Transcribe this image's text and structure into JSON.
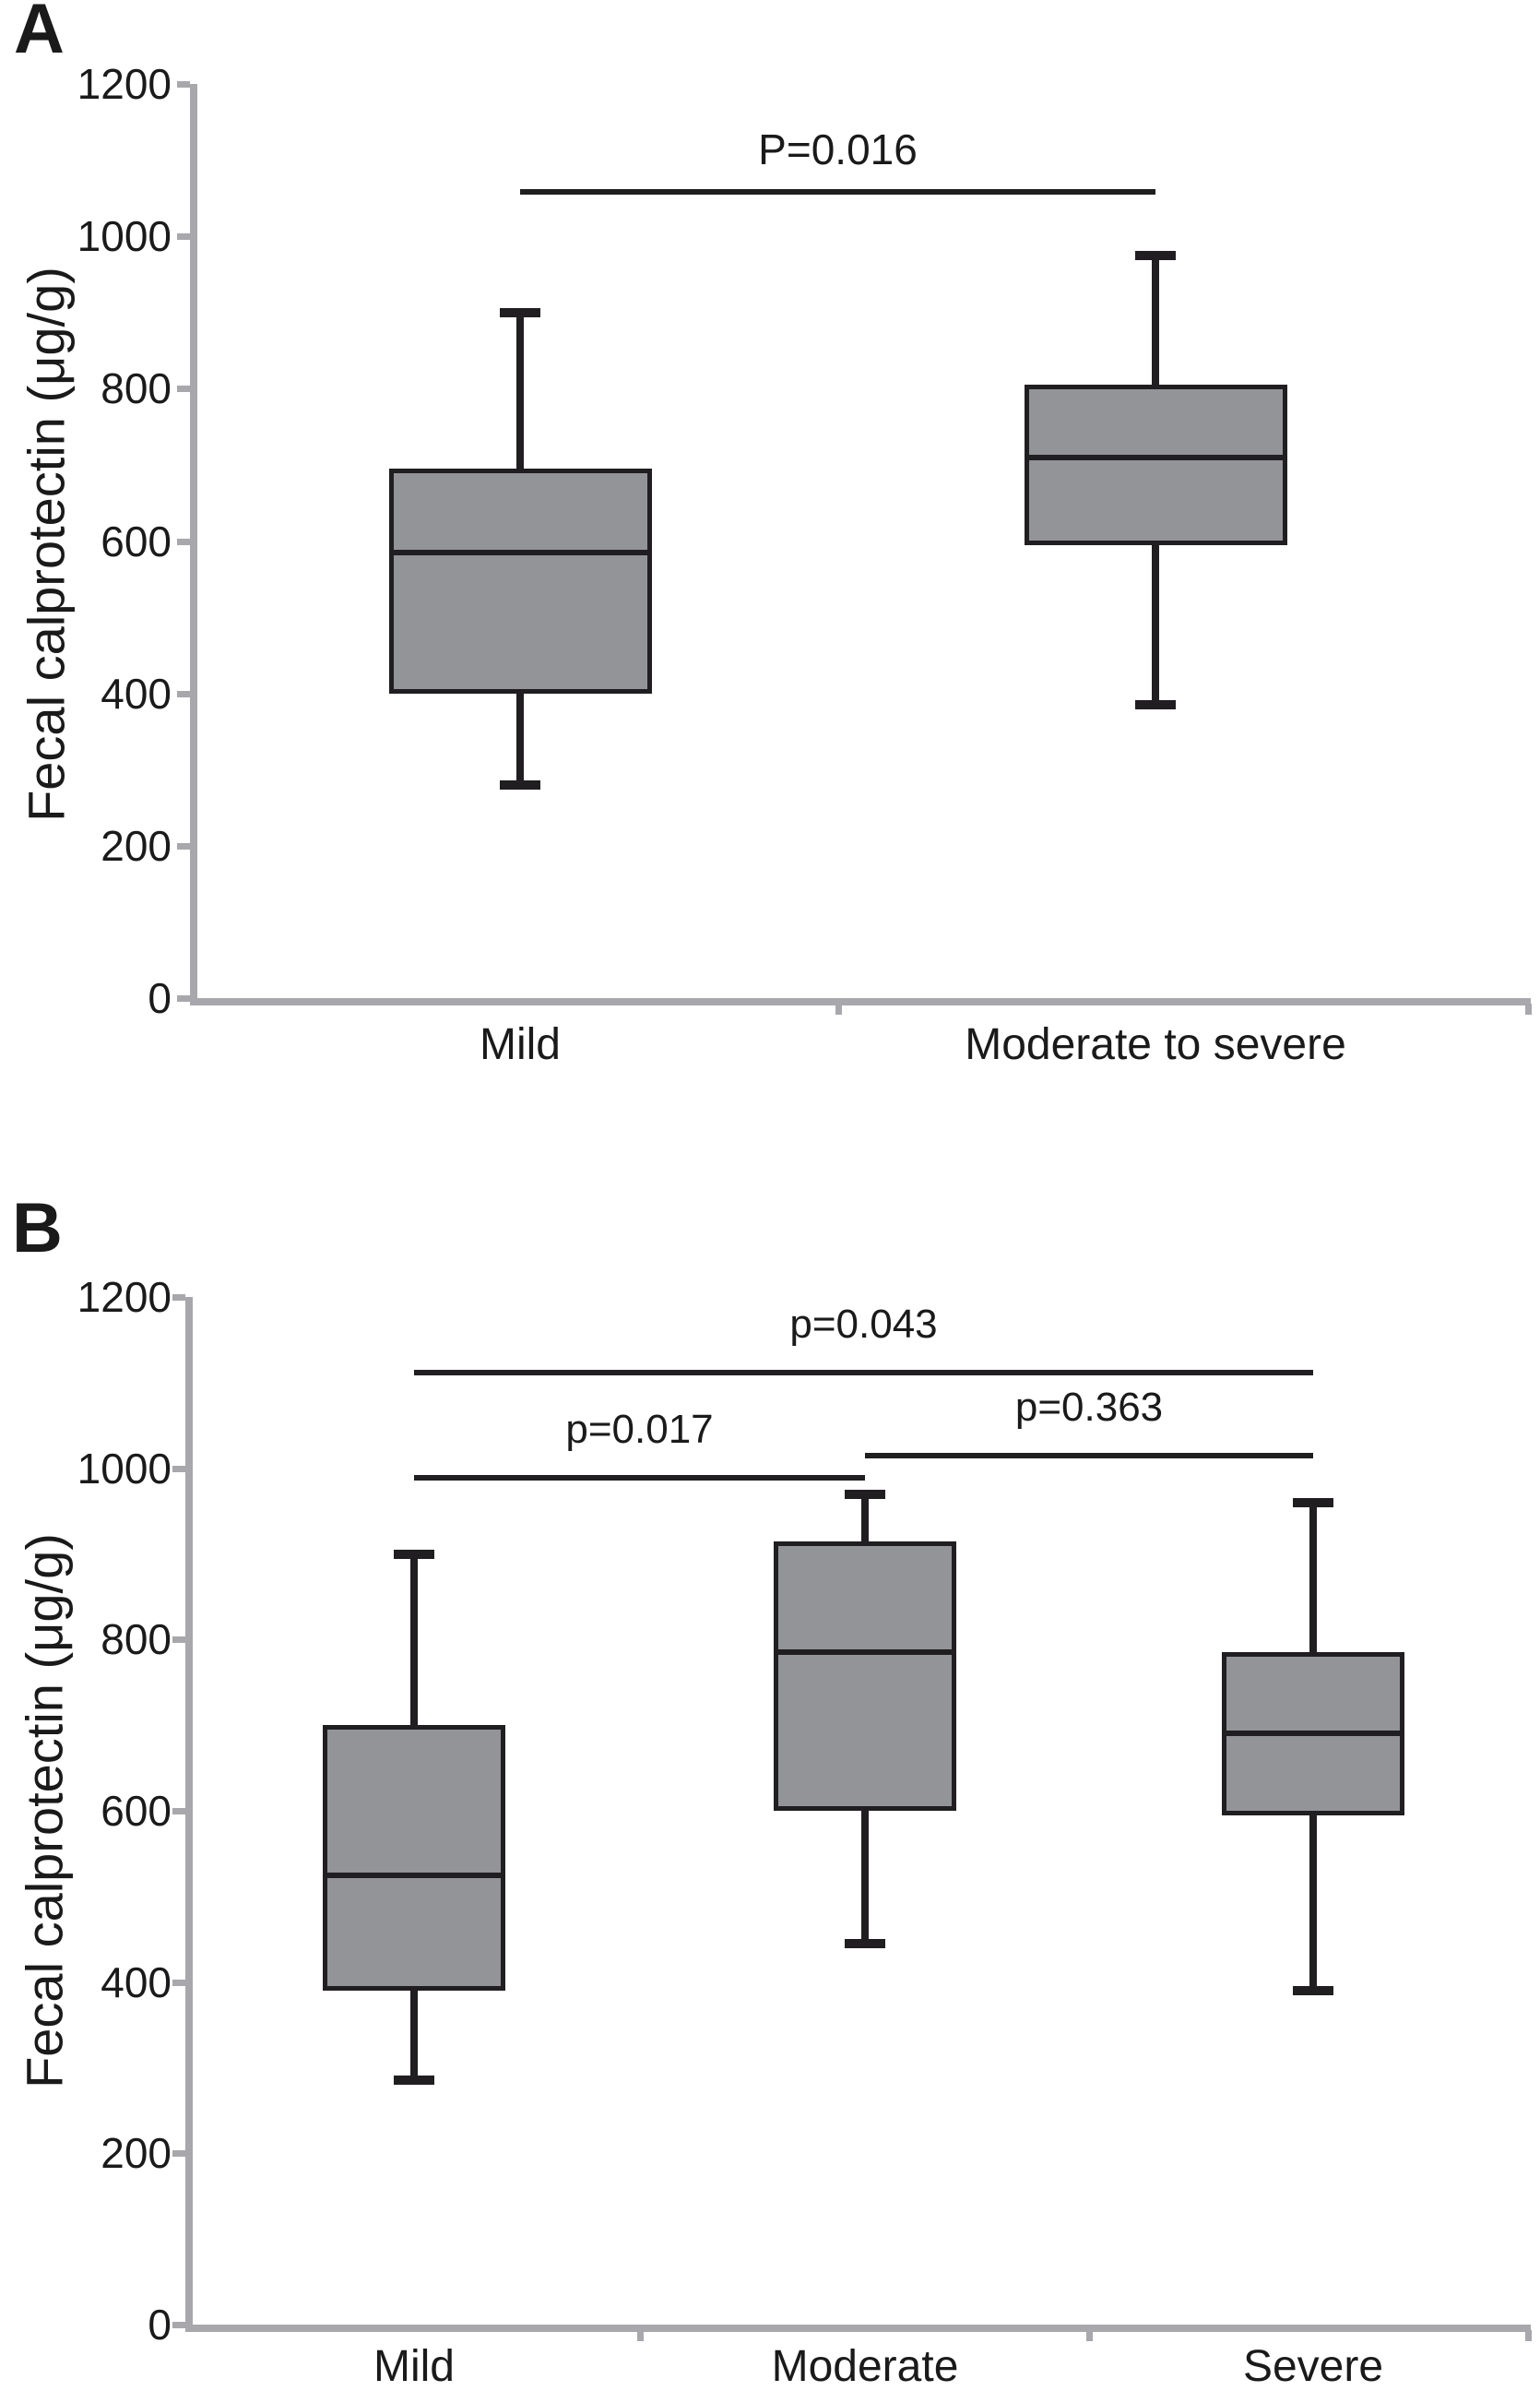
{
  "figure": {
    "background": "#ffffff"
  },
  "colors": {
    "box_fill": "#939498",
    "box_border": "#201e21",
    "axis": "#a8a8ac",
    "text": "#1a1a1a"
  },
  "chart_data": [
    {
      "type": "box",
      "panel_label": "A",
      "ylabel": "Fecal calprotectin (μg/g)",
      "ylim": [
        0,
        1200
      ],
      "yticks": [
        0,
        200,
        400,
        600,
        800,
        1000,
        1200
      ],
      "grid": false,
      "categories": [
        "Mild",
        "Moderate to severe"
      ],
      "series": [
        {
          "name": "Mild",
          "min": 280,
          "q1": 400,
          "median": 585,
          "q3": 695,
          "max": 900
        },
        {
          "name": "Moderate to severe",
          "min": 385,
          "q1": 595,
          "median": 710,
          "q3": 805,
          "max": 975
        }
      ],
      "annotations": [
        {
          "label": "P=0.016",
          "from": "Mild",
          "to": "Moderate to severe",
          "y": 1058
        }
      ]
    },
    {
      "type": "box",
      "panel_label": "B",
      "ylabel": "Fecal calprotectin (μg/g)",
      "ylim": [
        0,
        1200
      ],
      "yticks": [
        0,
        200,
        400,
        600,
        800,
        1000,
        1200
      ],
      "grid": false,
      "categories": [
        "Mild",
        "Moderate",
        "Severe"
      ],
      "series": [
        {
          "name": "Mild",
          "min": 285,
          "q1": 390,
          "median": 525,
          "q3": 700,
          "max": 900
        },
        {
          "name": "Moderate",
          "min": 445,
          "q1": 600,
          "median": 785,
          "q3": 915,
          "max": 970
        },
        {
          "name": "Severe",
          "min": 390,
          "q1": 595,
          "median": 690,
          "q3": 785,
          "max": 960
        }
      ],
      "annotations": [
        {
          "label": "p=0.043",
          "from": "Mild",
          "to": "Severe",
          "y": 1112
        },
        {
          "label": "p=0.017",
          "from": "Mild",
          "to": "Moderate",
          "y": 989
        },
        {
          "label": "p=0.363",
          "from": "Moderate",
          "to": "Severe",
          "y": 1015
        }
      ]
    }
  ]
}
